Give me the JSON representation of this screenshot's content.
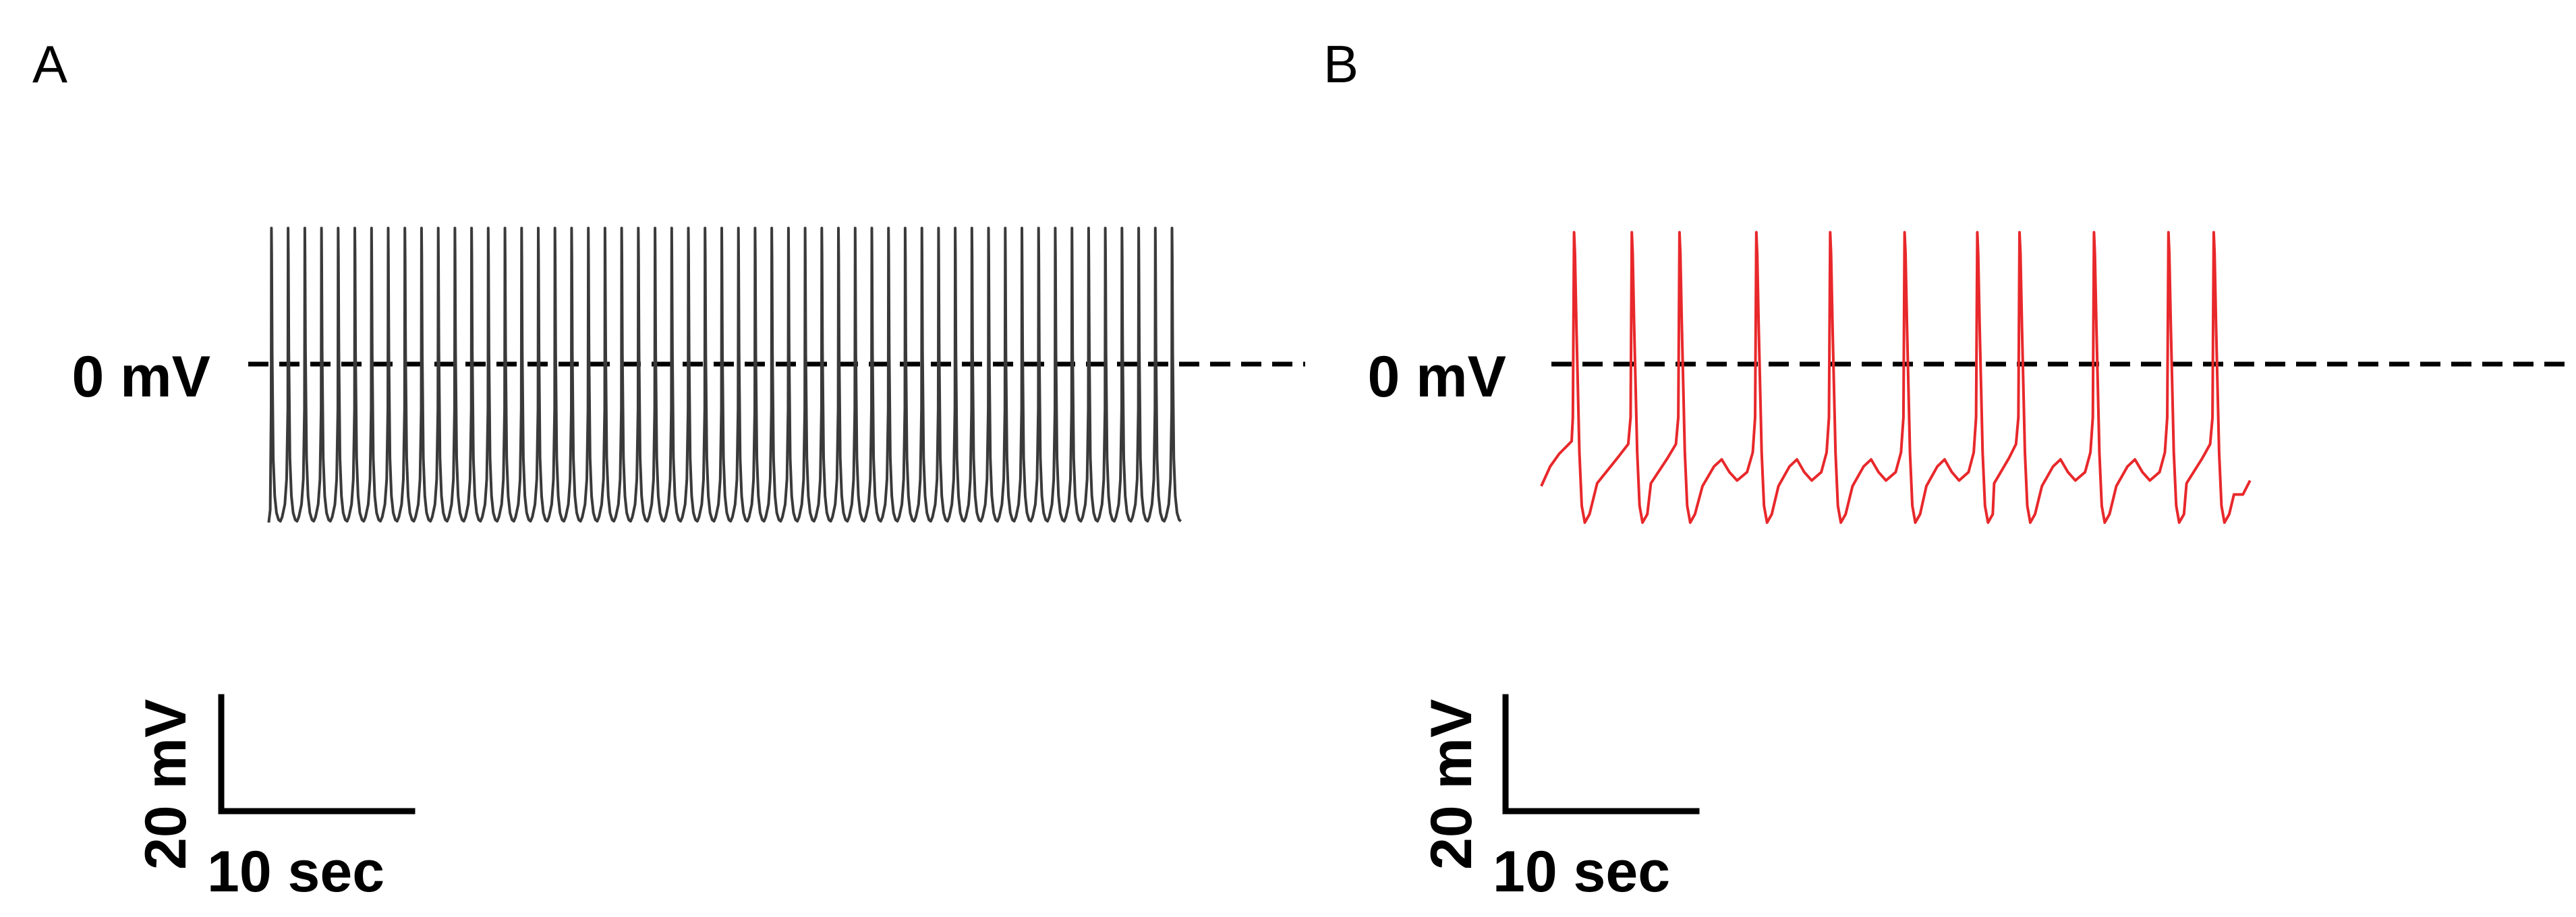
{
  "chart_data": [
    {
      "type": "line",
      "panel_label": "A",
      "reference_line": {
        "label": "0 mV",
        "value": 0,
        "style": "dashed"
      },
      "scale_bars": {
        "voltage": "20 mV",
        "time": "10 sec"
      },
      "trace_color": "#3a3a3a",
      "ylim": [
        -115,
        100
      ],
      "xlim": [
        0,
        153
      ],
      "series": [
        {
          "resting_mV": -112,
          "peak_mV": 97,
          "spike_times_sec": [
            0.5,
            3.3,
            6.1,
            8.9,
            11.7,
            14.5,
            17.3,
            20.1,
            22.9,
            25.7,
            28.5,
            31.3,
            34.1,
            36.9,
            39.7,
            42.5,
            45.3,
            48.1,
            50.9,
            53.7,
            56.5,
            59.3,
            62.1,
            64.9,
            67.7,
            70.5,
            73.3,
            76.1,
            78.9,
            81.7,
            84.5,
            87.3,
            90.1,
            92.9,
            95.7,
            98.5,
            101.3,
            104.1,
            106.9,
            109.7,
            112.5,
            115.3,
            118.1,
            120.9,
            123.7,
            126.5,
            129.3,
            132.1,
            134.9,
            137.7,
            140.5,
            143.3,
            146.1,
            148.9,
            151.7
          ]
        }
      ]
    },
    {
      "type": "line",
      "panel_label": "B",
      "reference_line": {
        "label": "0 mV",
        "value": 0,
        "style": "dashed"
      },
      "scale_bars": {
        "voltage": "20 mV",
        "time": "10 sec"
      },
      "trace_color": "#e8282b",
      "ylim": [
        -115,
        100
      ],
      "xlim": [
        0,
        153
      ],
      "series": [
        {
          "resting_mV": -113,
          "peak_mV": 94,
          "spike_times_sec": [
            5.5,
            15.2,
            23.2,
            36.1,
            48.5,
            61.0,
            73.2,
            80.3,
            92.8,
            105.3,
            112.9
          ],
          "subthreshold_bump_after_spike": [
            false,
            false,
            true,
            true,
            true,
            true,
            false,
            true,
            true,
            false,
            false
          ],
          "end_time_sec": 119.0,
          "end_value_mV": -83
        }
      ]
    }
  ]
}
